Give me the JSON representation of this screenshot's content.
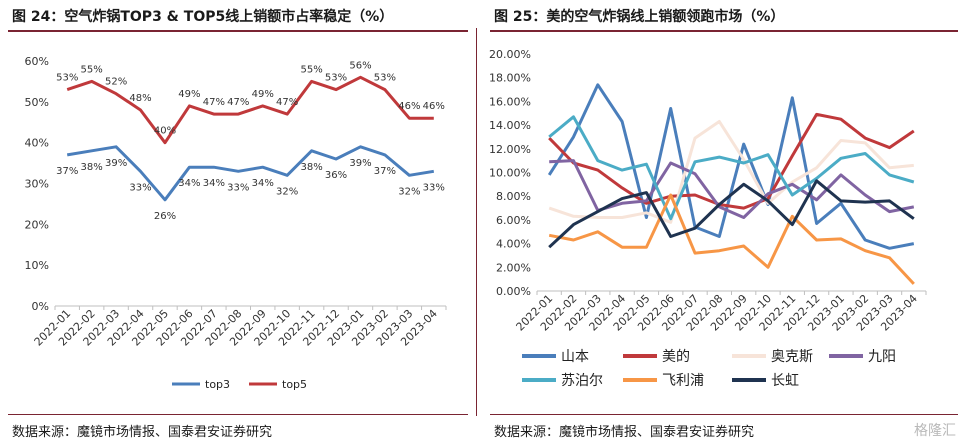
{
  "left": {
    "title": "图 24：空气炸锅TOP3 & TOP5线上销额市占率稳定（%）",
    "source": "数据来源：魔镜市场情报、国泰君安证券研究",
    "chart_data": {
      "type": "line",
      "categories": [
        "2022-01",
        "2022-02",
        "2022-03",
        "2022-04",
        "2022-05",
        "2022-06",
        "2022-07",
        "2022-08",
        "2022-09",
        "2022-10",
        "2022-11",
        "2022-12",
        "2023-01",
        "2023-02",
        "2023-03",
        "2023-04"
      ],
      "series": [
        {
          "name": "top3",
          "color": "#4a7ebb",
          "values": [
            37,
            38,
            39,
            33,
            26,
            34,
            34,
            33,
            34,
            32,
            38,
            36,
            39,
            37,
            32,
            33
          ],
          "labels": [
            "37%",
            "38%",
            "39%",
            "33%",
            "26%",
            "34%",
            "34%",
            "33%",
            "34%",
            "32%",
            "38%",
            "36%",
            "39%",
            "37%",
            "32%",
            "33%"
          ]
        },
        {
          "name": "top5",
          "color": "#c0393b",
          "values": [
            53,
            55,
            52,
            48,
            40,
            49,
            47,
            47,
            49,
            47,
            55,
            53,
            56,
            53,
            46,
            46
          ],
          "labels": [
            "53%",
            "55%",
            "52%",
            "48%",
            "40%",
            "49%",
            "47%",
            "47%",
            "49%",
            "47%",
            "55%",
            "53%",
            "56%",
            "53%",
            "46%",
            "46%"
          ]
        }
      ],
      "ylim": [
        0,
        60
      ],
      "yticks": [
        "0%",
        "10%",
        "20%",
        "30%",
        "40%",
        "50%",
        "60%"
      ],
      "grid": false,
      "legend": "bottom"
    }
  },
  "right": {
    "title": "图 25：美的空气炸锅线上销额领跑市场（%）",
    "source": "数据来源：魔镜市场情报、国泰君安证券研究",
    "chart_data": {
      "type": "line",
      "categories": [
        "2022-01",
        "2022-02",
        "2022-03",
        "2022-04",
        "2022-05",
        "2022-06",
        "2022-07",
        "2022-08",
        "2022-09",
        "2022-10",
        "2022-11",
        "2022-12",
        "2023-01",
        "2023-02",
        "2023-03",
        "2023-04"
      ],
      "series": [
        {
          "name": "山本",
          "color": "#4a7ebb",
          "values": [
            9.8,
            13.0,
            17.4,
            14.3,
            6.2,
            15.4,
            5.4,
            4.6,
            12.4,
            7.3,
            16.3,
            5.7,
            7.4,
            4.3,
            3.6,
            4.0
          ]
        },
        {
          "name": "美的",
          "color": "#c0393b",
          "values": [
            12.9,
            10.8,
            10.2,
            8.7,
            7.4,
            8.0,
            8.1,
            7.3,
            7.0,
            7.8,
            11.4,
            14.9,
            14.5,
            12.9,
            12.1,
            13.5
          ]
        },
        {
          "name": "奥克斯",
          "color": "#f7e4d9",
          "values": [
            7.0,
            6.3,
            6.2,
            6.2,
            6.6,
            5.8,
            12.9,
            14.3,
            11.1,
            7.4,
            9.2,
            10.4,
            12.7,
            12.5,
            10.4,
            10.6
          ]
        },
        {
          "name": "九阳",
          "color": "#8064a2",
          "values": [
            10.9,
            11.0,
            6.8,
            7.4,
            7.6,
            10.8,
            9.9,
            7.1,
            6.2,
            8.2,
            9.0,
            7.7,
            9.8,
            8.1,
            6.7,
            7.1
          ]
        },
        {
          "name": "苏泊尔",
          "color": "#4bacc6",
          "values": [
            13.0,
            14.7,
            11.0,
            10.2,
            10.7,
            6.1,
            10.9,
            11.3,
            10.8,
            11.5,
            8.1,
            9.5,
            11.2,
            11.6,
            9.8,
            9.2
          ]
        },
        {
          "name": "飞利浦",
          "color": "#f79646",
          "values": [
            4.7,
            4.3,
            5.0,
            3.7,
            3.7,
            8.1,
            3.2,
            3.4,
            3.8,
            2.0,
            6.3,
            4.3,
            4.4,
            3.4,
            2.8,
            0.6
          ]
        },
        {
          "name": "长虹",
          "color": "#1f3350",
          "values": [
            3.7,
            5.6,
            6.7,
            7.8,
            8.3,
            4.6,
            5.3,
            7.3,
            9.0,
            7.6,
            5.6,
            9.3,
            7.6,
            7.5,
            7.6,
            6.1
          ]
        }
      ],
      "ylim": [
        0,
        20
      ],
      "yticks": [
        "0.00%",
        "2.00%",
        "4.00%",
        "6.00%",
        "8.00%",
        "10.00%",
        "12.00%",
        "14.00%",
        "16.00%",
        "18.00%",
        "20.00%"
      ],
      "grid": false,
      "legend": "bottom"
    }
  },
  "watermark": "格隆汇"
}
